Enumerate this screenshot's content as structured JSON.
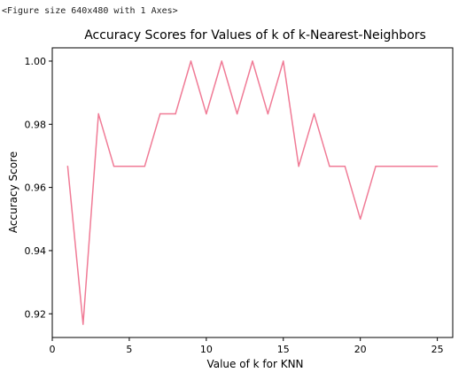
{
  "figure": {
    "caption": "<Figure size 640x480 with 1 Axes>"
  },
  "chart_data": {
    "type": "line",
    "title": "Accuracy Scores for Values of k of k-Nearest-Neighbors",
    "xlabel": "Value of k for KNN",
    "ylabel": "Accuracy Score",
    "xlim": [
      0,
      26
    ],
    "ylim": [
      0.9125,
      1.0042
    ],
    "xticks": [
      0,
      5,
      10,
      15,
      20,
      25
    ],
    "yticks": [
      0.92,
      0.94,
      0.96,
      0.98,
      1.0
    ],
    "xtick_labels": [
      "0",
      "5",
      "10",
      "15",
      "20",
      "25"
    ],
    "ytick_labels": [
      "0.92",
      "0.94",
      "0.96",
      "0.98",
      "1.00"
    ],
    "grid": false,
    "color": "#f07b96",
    "series": [
      {
        "x": [
          1,
          2,
          3,
          4,
          5,
          6,
          7,
          8,
          9,
          10,
          11,
          12,
          13,
          14,
          15,
          16,
          17,
          18,
          19,
          20,
          21,
          22,
          23,
          24,
          25
        ],
        "values": [
          0.9667,
          0.9167,
          0.9833,
          0.9667,
          0.9667,
          0.9667,
          0.9833,
          0.9833,
          1.0,
          0.9833,
          1.0,
          0.9833,
          1.0,
          0.9833,
          1.0,
          0.9667,
          0.9833,
          0.9667,
          0.9667,
          0.95,
          0.9667,
          0.9667,
          0.9667,
          0.9667,
          0.9667
        ]
      }
    ]
  }
}
